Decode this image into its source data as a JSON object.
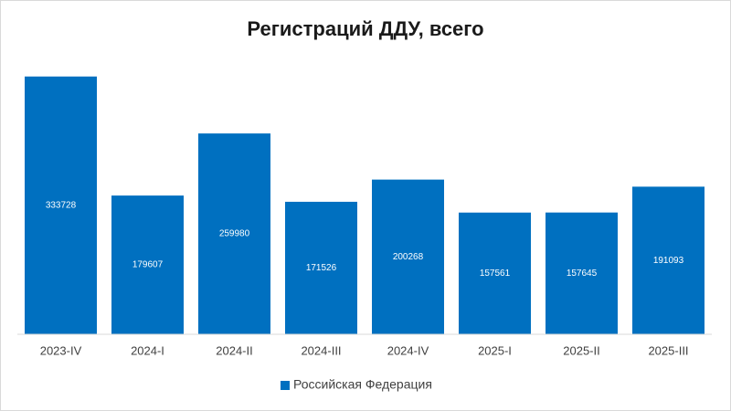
{
  "chart_data": {
    "type": "bar",
    "title": "Регистраций ДДУ, всего",
    "categories": [
      "2023-IV",
      "2024-I",
      "2024-II",
      "2024-III",
      "2024-IV",
      "2025-I",
      "2025-II",
      "2025-III"
    ],
    "series": [
      {
        "name": "Российская Федерация",
        "color": "#0070c0",
        "values": [
          333728,
          179607,
          259980,
          171526,
          200268,
          157561,
          157645,
          191093
        ]
      }
    ],
    "ylim": [
      0,
      350000
    ],
    "legend": "bottom"
  }
}
